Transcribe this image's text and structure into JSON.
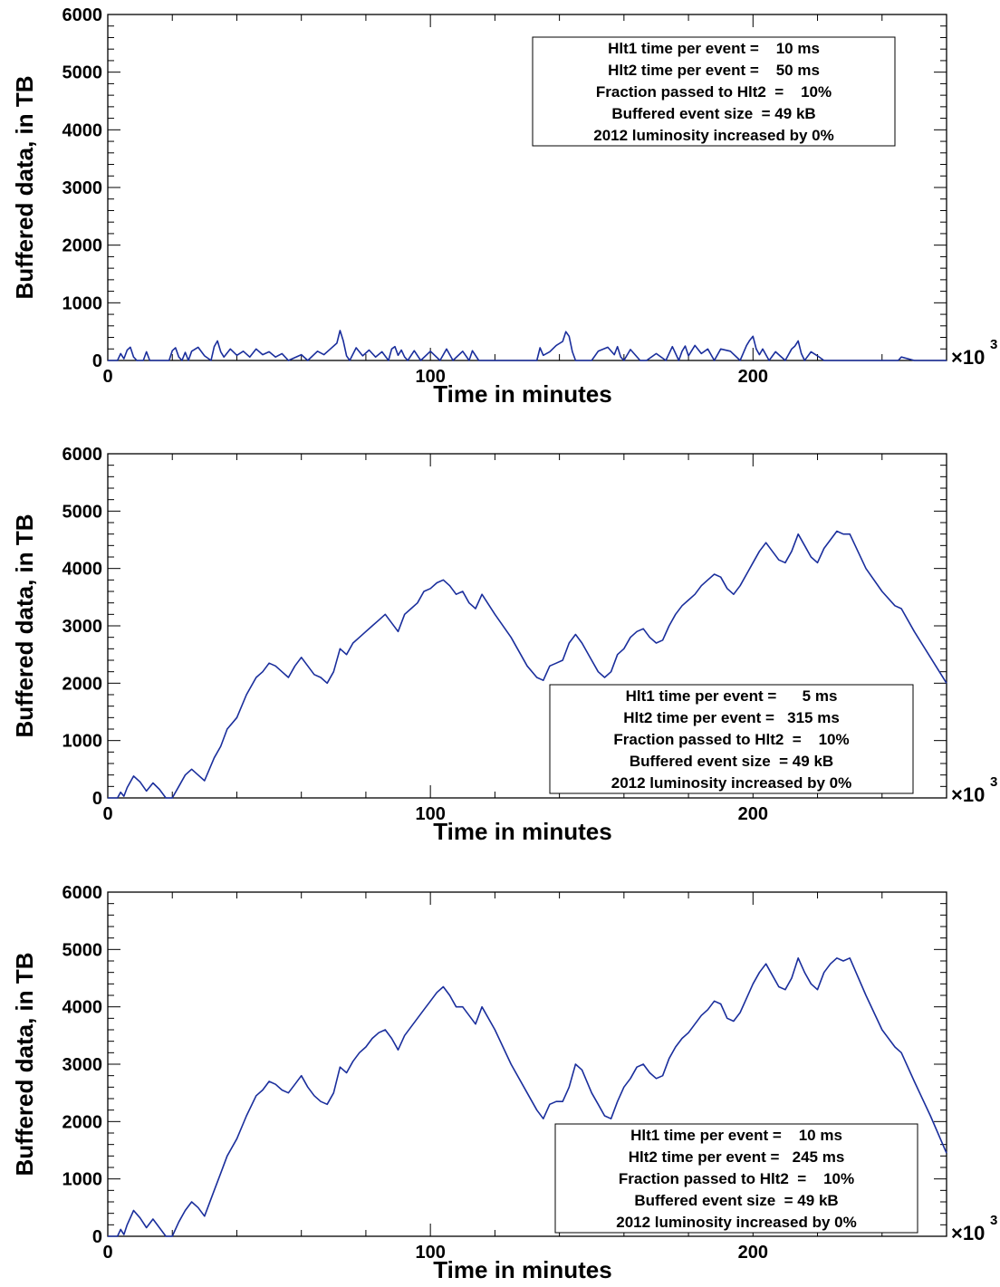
{
  "figure": {
    "xlabel": "Time in minutes",
    "ylabel": "Buffered data, in TB",
    "x_multiplier": "×10",
    "x_multiplier_exp": "3",
    "x_ticks": [
      "0",
      "100",
      "200"
    ],
    "y_ticks": [
      "0",
      "1000",
      "2000",
      "3000",
      "4000",
      "5000",
      "6000"
    ],
    "line_color": "#1a2e9c"
  },
  "chart_data": [
    {
      "type": "line",
      "xlabel": "Time in minutes",
      "ylabel": "Buffered data, in TB",
      "x_unit": "×10^3 minutes",
      "xlim": [
        0,
        260
      ],
      "ylim": [
        0,
        6000
      ],
      "legend_position": "top-right",
      "annotation": [
        "Hlt1 time per event =    10 ms",
        "Hlt2 time per event =    50 ms",
        "Fraction passed to Hlt2  =    10%",
        "Buffered event size  = 49 kB",
        "2012 luminosity increased by 0%"
      ],
      "series": [
        {
          "x": [
            0,
            3,
            4,
            5,
            6,
            7,
            8,
            9,
            11,
            12,
            13,
            19,
            20,
            21,
            22,
            23,
            24,
            25,
            26,
            28,
            30,
            32,
            33,
            34,
            35,
            36,
            38,
            40,
            42,
            44,
            46,
            48,
            50,
            52,
            54,
            56,
            60,
            62,
            65,
            67,
            69,
            71,
            72,
            73,
            74,
            75,
            77,
            79,
            81,
            83,
            85,
            87,
            88,
            89,
            90,
            91,
            92,
            93,
            95,
            97,
            100,
            103,
            105,
            107,
            110,
            112,
            113,
            115,
            118,
            120,
            125,
            130,
            133,
            134,
            135,
            137,
            139,
            141,
            142,
            143,
            144,
            145,
            146,
            147,
            150,
            152,
            155,
            157,
            158,
            159,
            160,
            162,
            165,
            167,
            170,
            173,
            175,
            177,
            178,
            179,
            180,
            182,
            184,
            186,
            188,
            190,
            193,
            196,
            198,
            199,
            200,
            201,
            202,
            203,
            205,
            207,
            210,
            212,
            213,
            214,
            215,
            216,
            218,
            220,
            222,
            225,
            230,
            235,
            240,
            245,
            246,
            250,
            255,
            260
          ],
          "y": [
            0,
            0,
            120,
            30,
            180,
            230,
            60,
            0,
            0,
            150,
            0,
            0,
            170,
            220,
            60,
            0,
            140,
            0,
            160,
            230,
            80,
            0,
            240,
            340,
            150,
            60,
            200,
            90,
            160,
            60,
            200,
            100,
            150,
            60,
            120,
            0,
            100,
            0,
            160,
            100,
            200,
            300,
            520,
            340,
            80,
            0,
            220,
            80,
            180,
            60,
            150,
            0,
            200,
            240,
            90,
            180,
            60,
            0,
            170,
            0,
            160,
            0,
            200,
            0,
            160,
            0,
            170,
            0,
            0,
            0,
            0,
            0,
            0,
            220,
            90,
            150,
            260,
            330,
            500,
            420,
            150,
            0,
            0,
            0,
            0,
            160,
            230,
            100,
            240,
            60,
            0,
            190,
            0,
            0,
            120,
            0,
            240,
            0,
            160,
            250,
            80,
            260,
            120,
            200,
            0,
            200,
            160,
            0,
            260,
            350,
            420,
            200,
            100,
            200,
            0,
            150,
            0,
            200,
            250,
            340,
            120,
            0,
            150,
            80,
            0,
            0,
            0,
            0,
            0,
            0,
            60,
            0,
            0,
            0
          ]
        }
      ]
    },
    {
      "type": "line",
      "xlabel": "Time in minutes",
      "ylabel": "Buffered data, in TB",
      "x_unit": "×10^3 minutes",
      "xlim": [
        0,
        260
      ],
      "ylim": [
        0,
        6000
      ],
      "legend_position": "bottom-right",
      "annotation": [
        "Hlt1 time per event =      5 ms",
        "Hlt2 time per event =   315 ms",
        "Fraction passed to Hlt2  =    10%",
        "Buffered event size  = 49 kB",
        "2012 luminosity increased by 0%"
      ],
      "series": [
        {
          "x": [
            0,
            3,
            4,
            5,
            6,
            8,
            10,
            12,
            14,
            16,
            18,
            19,
            20,
            22,
            24,
            26,
            28,
            30,
            33,
            35,
            37,
            40,
            43,
            46,
            48,
            50,
            52,
            54,
            56,
            58,
            60,
            62,
            64,
            66,
            68,
            70,
            72,
            74,
            76,
            78,
            80,
            82,
            84,
            86,
            88,
            90,
            92,
            94,
            96,
            98,
            100,
            102,
            104,
            106,
            108,
            110,
            112,
            114,
            116,
            120,
            125,
            130,
            133,
            135,
            137,
            139,
            141,
            143,
            145,
            147,
            150,
            152,
            154,
            156,
            158,
            160,
            162,
            164,
            166,
            168,
            170,
            172,
            174,
            176,
            178,
            180,
            182,
            184,
            186,
            188,
            190,
            192,
            194,
            196,
            198,
            200,
            202,
            204,
            206,
            208,
            210,
            212,
            214,
            216,
            218,
            220,
            222,
            224,
            226,
            228,
            230,
            235,
            240,
            244,
            246,
            250,
            255,
            260
          ],
          "y": [
            0,
            0,
            100,
            30,
            180,
            380,
            280,
            120,
            260,
            150,
            0,
            0,
            0,
            200,
            400,
            500,
            400,
            300,
            700,
            900,
            1200,
            1400,
            1800,
            2100,
            2200,
            2350,
            2300,
            2200,
            2100,
            2300,
            2450,
            2300,
            2150,
            2100,
            2000,
            2200,
            2600,
            2500,
            2700,
            2800,
            2900,
            3000,
            3100,
            3200,
            3050,
            2900,
            3200,
            3300,
            3400,
            3600,
            3650,
            3750,
            3800,
            3700,
            3550,
            3600,
            3400,
            3300,
            3550,
            3200,
            2800,
            2300,
            2100,
            2050,
            2300,
            2350,
            2400,
            2700,
            2850,
            2700,
            2400,
            2200,
            2100,
            2200,
            2500,
            2600,
            2800,
            2900,
            2950,
            2800,
            2700,
            2750,
            3000,
            3200,
            3350,
            3450,
            3550,
            3700,
            3800,
            3900,
            3850,
            3650,
            3550,
            3700,
            3900,
            4100,
            4300,
            4450,
            4300,
            4150,
            4100,
            4300,
            4600,
            4400,
            4200,
            4100,
            4350,
            4500,
            4650,
            4600,
            4600,
            4000,
            3600,
            3350,
            3300,
            2900,
            2450,
            2000
          ]
        }
      ]
    },
    {
      "type": "line",
      "xlabel": "Time in minutes",
      "ylabel": "Buffered data, in TB",
      "x_unit": "×10^3 minutes",
      "xlim": [
        0,
        260
      ],
      "ylim": [
        0,
        6000
      ],
      "legend_position": "bottom-right",
      "annotation": [
        "Hlt1 time per event =    10 ms",
        "Hlt2 time per event =   245 ms",
        "Fraction passed to Hlt2  =    10%",
        "Buffered event size  = 49 kB",
        "2012 luminosity increased by 0%"
      ],
      "series": [
        {
          "x": [
            0,
            3,
            4,
            5,
            6,
            8,
            10,
            12,
            14,
            16,
            18,
            19,
            20,
            22,
            24,
            26,
            28,
            30,
            33,
            35,
            37,
            40,
            43,
            46,
            48,
            50,
            52,
            54,
            56,
            58,
            60,
            62,
            64,
            66,
            68,
            70,
            72,
            74,
            76,
            78,
            80,
            82,
            84,
            86,
            88,
            90,
            92,
            94,
            96,
            98,
            100,
            102,
            104,
            106,
            108,
            110,
            112,
            114,
            116,
            120,
            125,
            130,
            133,
            135,
            137,
            139,
            141,
            143,
            145,
            147,
            150,
            152,
            154,
            156,
            158,
            160,
            162,
            164,
            166,
            168,
            170,
            172,
            174,
            176,
            178,
            180,
            182,
            184,
            186,
            188,
            190,
            192,
            194,
            196,
            198,
            200,
            202,
            204,
            206,
            208,
            210,
            212,
            214,
            216,
            218,
            220,
            222,
            224,
            226,
            228,
            230,
            235,
            240,
            244,
            246,
            250,
            255,
            260
          ],
          "y": [
            0,
            0,
            120,
            30,
            200,
            450,
            320,
            150,
            300,
            150,
            0,
            0,
            0,
            250,
            450,
            600,
            500,
            350,
            800,
            1100,
            1400,
            1700,
            2100,
            2450,
            2550,
            2700,
            2650,
            2550,
            2500,
            2650,
            2800,
            2600,
            2450,
            2350,
            2300,
            2500,
            2950,
            2850,
            3050,
            3200,
            3300,
            3450,
            3550,
            3600,
            3450,
            3250,
            3500,
            3650,
            3800,
            3950,
            4100,
            4250,
            4350,
            4200,
            4000,
            4000,
            3850,
            3700,
            4000,
            3600,
            3000,
            2500,
            2200,
            2050,
            2300,
            2350,
            2350,
            2600,
            3000,
            2900,
            2500,
            2300,
            2100,
            2050,
            2350,
            2600,
            2750,
            2950,
            3000,
            2850,
            2750,
            2800,
            3100,
            3300,
            3450,
            3550,
            3700,
            3850,
            3950,
            4100,
            4050,
            3800,
            3750,
            3900,
            4150,
            4400,
            4600,
            4750,
            4550,
            4350,
            4300,
            4500,
            4850,
            4600,
            4400,
            4300,
            4600,
            4750,
            4850,
            4800,
            4850,
            4200,
            3600,
            3300,
            3200,
            2700,
            2100,
            1450
          ]
        }
      ]
    }
  ]
}
